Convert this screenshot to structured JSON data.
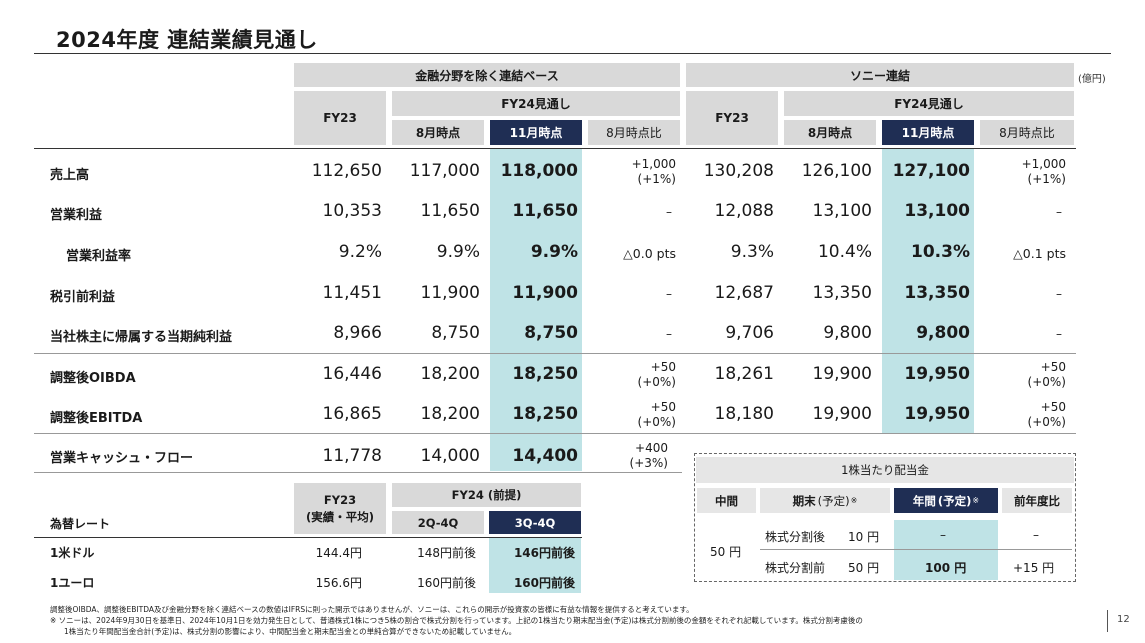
{
  "title": "2024年度 連結業績見通し",
  "unit": "(億円)",
  "colors": {
    "header_gray": "#d9d9d9",
    "header_navy": "#1f2e54",
    "highlight": "#bfe3e6"
  },
  "headers": {
    "group_left": "金融分野を除く連結ベース",
    "group_right": "ソニー連結",
    "fy23": "FY23",
    "fy24": "FY24見通し",
    "aug": "8月時点",
    "nov": "11月時点",
    "vs_aug": "8月時点比"
  },
  "rows": [
    {
      "label": "売上高",
      "ex": [
        "112,650",
        "117,000",
        "118,000"
      ],
      "ex_chg": [
        "+1,000",
        "(+1%)"
      ],
      "so": [
        "130,208",
        "126,100",
        "127,100"
      ],
      "so_chg": [
        "+1,000",
        "(+1%)"
      ]
    },
    {
      "label": "営業利益",
      "ex": [
        "10,353",
        "11,650",
        "11,650"
      ],
      "ex_chg": [
        "–"
      ],
      "so": [
        "12,088",
        "13,100",
        "13,100"
      ],
      "so_chg": [
        "–"
      ]
    },
    {
      "label": "営業利益率",
      "ex": [
        "9.2%",
        "9.9%",
        "9.9%"
      ],
      "ex_chg": [
        "△0.0 pts"
      ],
      "so": [
        "9.3%",
        "10.4%",
        "10.3%"
      ],
      "so_chg": [
        "△0.1 pts"
      ]
    },
    {
      "label": "税引前利益",
      "ex": [
        "11,451",
        "11,900",
        "11,900"
      ],
      "ex_chg": [
        "–"
      ],
      "so": [
        "12,687",
        "13,350",
        "13,350"
      ],
      "so_chg": [
        "–"
      ]
    },
    {
      "label": "当社株主に帰属する当期純利益",
      "ex": [
        "8,966",
        "8,750",
        "8,750"
      ],
      "ex_chg": [
        "–"
      ],
      "so": [
        "9,706",
        "9,800",
        "9,800"
      ],
      "so_chg": [
        "–"
      ]
    },
    {
      "label": "調整後OIBDA",
      "ex": [
        "16,446",
        "18,200",
        "18,250"
      ],
      "ex_chg": [
        "+50",
        "(+0%)"
      ],
      "so": [
        "18,261",
        "19,900",
        "19,950"
      ],
      "so_chg": [
        "+50",
        "(+0%)"
      ]
    },
    {
      "label": "調整後EBITDA",
      "ex": [
        "16,865",
        "18,200",
        "18,250"
      ],
      "ex_chg": [
        "+50",
        "(+0%)"
      ],
      "so": [
        "18,180",
        "19,900",
        "19,950"
      ],
      "so_chg": [
        "+50",
        "(+0%)"
      ]
    },
    {
      "label": "営業キャッシュ・フロー",
      "ex": [
        "11,778",
        "14,000",
        "14,400"
      ],
      "ex_chg": [
        "+400",
        "(+3%)"
      ]
    }
  ],
  "fx": {
    "label": "為替レート",
    "fy23": "FY23",
    "fy23_sub": "(実績・平均)",
    "fy24": "FY24 (前提)",
    "q2q4": "2Q-4Q",
    "q3q4": "3Q-4Q",
    "rows": [
      {
        "label": "1米ドル",
        "v": [
          "144.4円",
          "148円前後",
          "146円前後"
        ]
      },
      {
        "label": "1ユーロ",
        "v": [
          "156.6円",
          "160円前後",
          "160円前後"
        ]
      }
    ]
  },
  "dividend": {
    "title": "1株当たり配当金",
    "h_mid": "中間",
    "h_end": "期末",
    "h_end_paren": "(予定)",
    "h_annual": "年間",
    "h_annual_paren": "(予定)",
    "note_mark": "※",
    "h_prev": "前年度比",
    "mid_value": "50 円",
    "after_label": "株式分割後",
    "after_value": "10 円",
    "after_annual": "–",
    "after_prev": "–",
    "before_label": "株式分割前",
    "before_value": "50 円",
    "before_annual": "100 円",
    "before_prev": "+15 円"
  },
  "footnotes": [
    "調整後OIBDA、調整後EBITDA及び金融分野を除く連結ベースの数値はIFRSに則った開示ではありませんが、ソニーは、これらの開示が投資家の皆様に有益な情報を提供すると考えています。",
    "※ ソニーは、2024年9月30日を基準日、2024年10月1日を効力発生日として、普通株式1株につき5株の割合で株式分割を行っています。上記の1株当たり期末配当金(予定)は株式分割前後の金額をそれぞれ記載しています。株式分割考慮後の",
    "1株当たり年間配当金合計(予定)は、株式分割の影響により、中間配当金と期末配当金との単純合算ができないため記載していません。"
  ],
  "page_number": "12"
}
